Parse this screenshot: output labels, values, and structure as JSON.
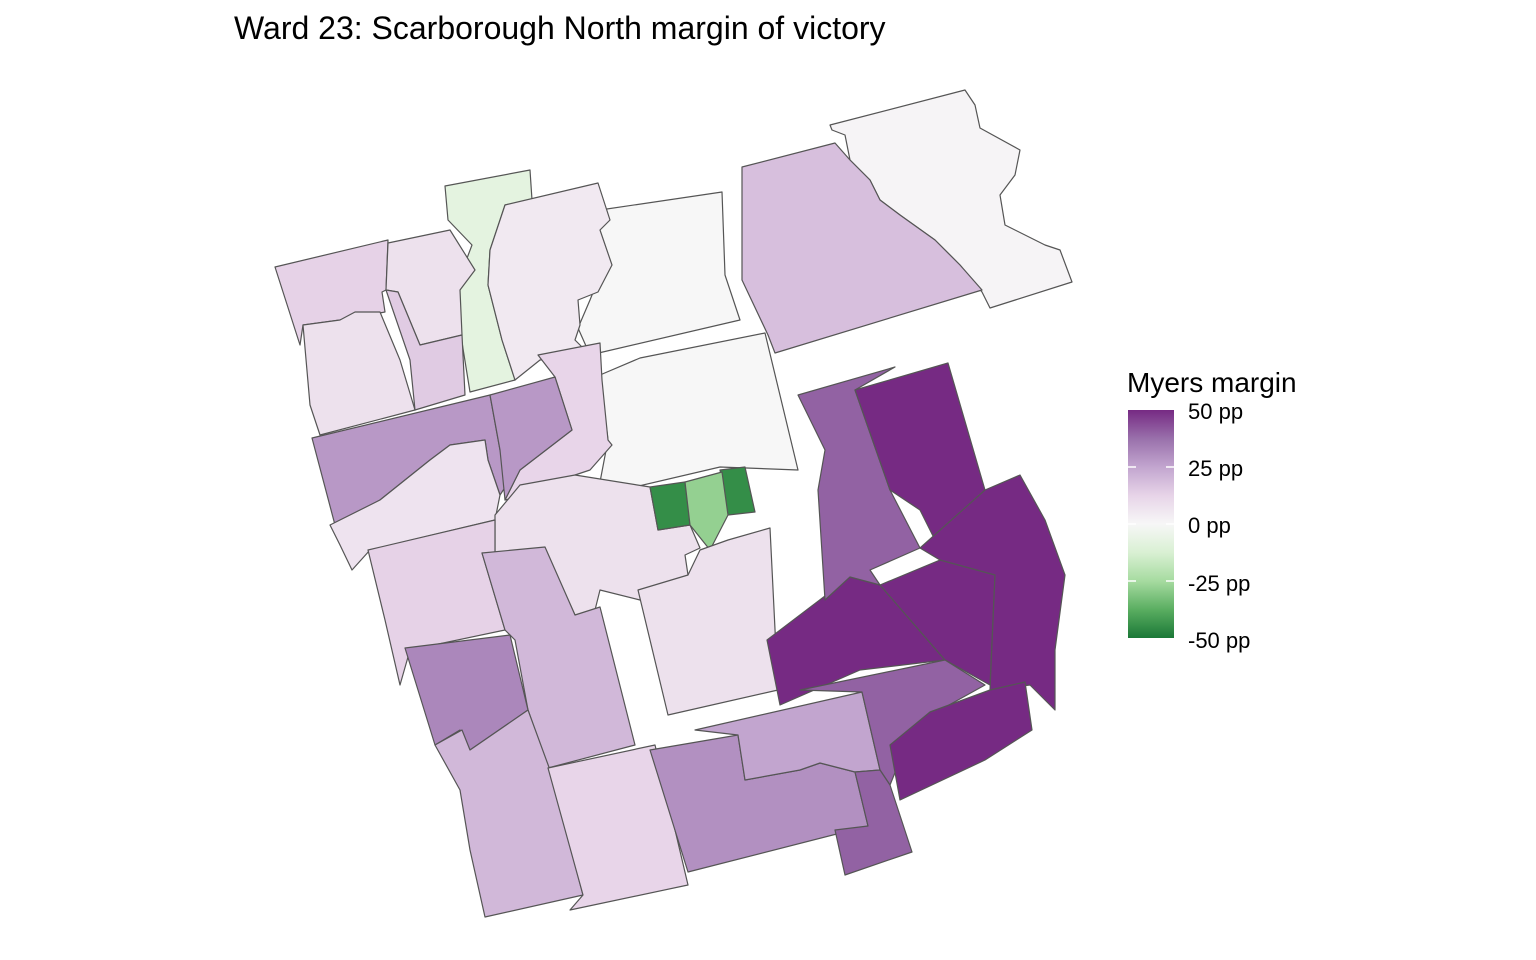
{
  "title": "Ward 23: Scarborough North margin of victory",
  "legend": {
    "title": "Myers margin",
    "ticks": [
      "50 pp",
      "25 pp",
      "0 pp",
      "-25 pp",
      "-50 pp"
    ],
    "tick_values": [
      50,
      25,
      0,
      -25,
      -50
    ],
    "range": [
      -50,
      50
    ],
    "palette": {
      "-50": "#1b7837",
      "-25": "#a6dba0",
      "0": "#f7f7f7",
      "25": "#c2a5cf",
      "50": "#762a83"
    }
  },
  "map_data": {
    "type": "choropleth",
    "border_color": "#555555",
    "region_margins_pp": [
      1,
      18,
      0,
      0,
      -8,
      5,
      13,
      8,
      8,
      15,
      12,
      28,
      28,
      7,
      8,
      -45,
      -45,
      -28,
      8,
      13,
      20,
      32,
      20,
      12,
      30,
      25,
      50,
      40,
      50,
      50,
      50,
      40,
      50,
      40
    ]
  }
}
